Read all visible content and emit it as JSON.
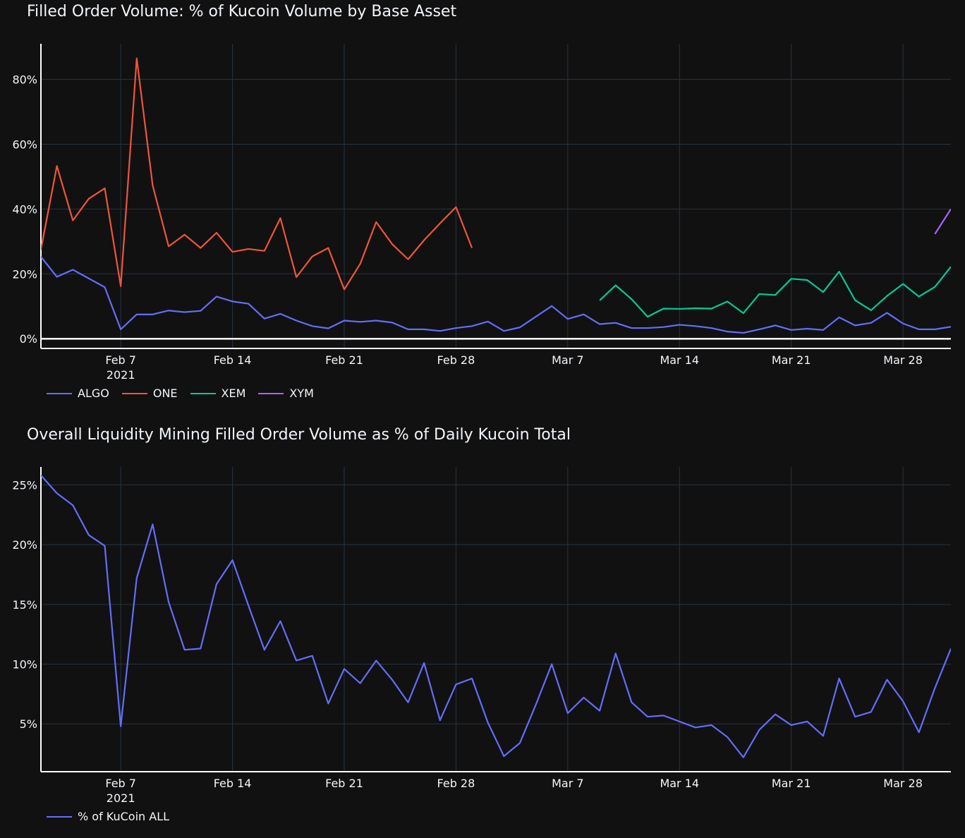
{
  "charts": [
    {
      "title": "Filled Order Volume: % of Kucoin Volume by Base Asset",
      "legend": [
        "ALGO",
        "ONE",
        "XEM",
        "XYM"
      ]
    },
    {
      "title": "Overall Liquidity Mining Filled Order Volume as % of Daily Kucoin Total",
      "legend": [
        "% of KuCoin ALL"
      ]
    }
  ],
  "chart_data": [
    {
      "type": "line",
      "title": "Filled Order Volume: % of Kucoin Volume by Base Asset",
      "x_ticks": [
        {
          "date": "2021-02-07",
          "label": "Feb 7",
          "sublabel": "2021"
        },
        {
          "date": "2021-02-14",
          "label": "Feb 14"
        },
        {
          "date": "2021-02-21",
          "label": "Feb 21"
        },
        {
          "date": "2021-02-28",
          "label": "Feb 28"
        },
        {
          "date": "2021-03-07",
          "label": "Mar 7"
        },
        {
          "date": "2021-03-14",
          "label": "Mar 14"
        },
        {
          "date": "2021-03-21",
          "label": "Mar 21"
        },
        {
          "date": "2021-03-28",
          "label": "Mar 28"
        }
      ],
      "xlim": [
        "2021-02-02",
        "2021-03-31"
      ],
      "ylim": [
        -3,
        91
      ],
      "y_ticks": [
        0,
        20,
        40,
        60,
        80
      ],
      "y_tick_labels": [
        "0%",
        "20%",
        "40%",
        "60%",
        "80%"
      ],
      "grid": true,
      "legend_position": "bottom-left",
      "series": [
        {
          "name": "ALGO",
          "color": "#636efa",
          "start": "2021-02-02",
          "values": [
            25.3,
            19.1,
            21.3,
            18.6,
            15.9,
            2.9,
            7.5,
            7.5,
            8.7,
            8.2,
            8.6,
            13.0,
            11.5,
            10.8,
            6.2,
            7.7,
            5.6,
            3.9,
            3.2,
            5.6,
            5.2,
            5.6,
            5.0,
            2.9,
            2.9,
            2.4,
            3.3,
            3.9,
            5.3,
            2.4,
            3.5,
            6.8,
            10.1,
            6.1,
            7.5,
            4.5,
            4.9,
            3.3,
            3.3,
            3.6,
            4.3,
            3.9,
            3.3,
            2.2,
            1.8,
            2.9,
            4.1,
            2.7,
            3.1,
            2.7,
            6.6,
            4.1,
            4.9,
            8.0,
            4.7,
            2.9,
            2.9,
            3.7
          ]
        },
        {
          "name": "ONE",
          "color": "#ef553b",
          "start": "2021-02-02",
          "values": [
            27.5,
            53.3,
            36.5,
            43.2,
            46.4,
            16.2,
            86.5,
            47.3,
            28.5,
            32.1,
            28.0,
            32.7,
            26.8,
            27.7,
            27.1,
            37.2,
            19.0,
            25.4,
            28.0,
            15.2,
            23.1,
            36.0,
            29.2,
            24.5,
            30.4,
            35.6,
            40.6,
            28.0
          ]
        },
        {
          "name": "XEM",
          "color": "#00cc96",
          "start": "2021-03-09",
          "values": [
            11.8,
            16.5,
            12.2,
            6.8,
            9.3,
            9.2,
            9.4,
            9.3,
            11.5,
            7.9,
            13.8,
            13.5,
            18.5,
            18.1,
            14.4,
            20.7,
            11.9,
            8.8,
            13.2,
            16.9,
            13.0,
            16.0,
            22.2
          ]
        },
        {
          "name": "XYM",
          "color": "#ab63fa",
          "start": "2021-03-30",
          "values": [
            32.3,
            40.0
          ]
        }
      ]
    },
    {
      "type": "line",
      "title": "Overall Liquidity Mining Filled Order Volume as % of Daily Kucoin Total",
      "x_ticks": [
        {
          "date": "2021-02-07",
          "label": "Feb 7",
          "sublabel": "2021"
        },
        {
          "date": "2021-02-14",
          "label": "Feb 14"
        },
        {
          "date": "2021-02-21",
          "label": "Feb 21"
        },
        {
          "date": "2021-02-28",
          "label": "Feb 28"
        },
        {
          "date": "2021-03-07",
          "label": "Mar 7"
        },
        {
          "date": "2021-03-14",
          "label": "Mar 14"
        },
        {
          "date": "2021-03-21",
          "label": "Mar 21"
        },
        {
          "date": "2021-03-28",
          "label": "Mar 28"
        }
      ],
      "xlim": [
        "2021-02-02",
        "2021-03-31"
      ],
      "ylim": [
        1.0,
        26.5
      ],
      "y_ticks": [
        5,
        10,
        15,
        20,
        25
      ],
      "y_tick_labels": [
        "5%",
        "10%",
        "15%",
        "20%",
        "25%"
      ],
      "grid": true,
      "legend_position": "bottom-left",
      "series": [
        {
          "name": "% of KuCoin ALL",
          "color": "#636efa",
          "start": "2021-02-02",
          "values": [
            25.8,
            24.3,
            23.3,
            20.8,
            19.9,
            4.8,
            17.2,
            21.7,
            15.2,
            11.2,
            11.3,
            16.7,
            18.7,
            14.9,
            11.2,
            13.6,
            10.3,
            10.7,
            6.7,
            9.6,
            8.4,
            10.3,
            8.7,
            6.8,
            10.1,
            5.3,
            8.3,
            8.8,
            5.1,
            2.3,
            3.4,
            6.6,
            10.0,
            5.9,
            7.2,
            6.1,
            10.9,
            6.8,
            5.6,
            5.7,
            5.2,
            4.7,
            4.9,
            3.9,
            2.2,
            4.5,
            5.8,
            4.9,
            5.2,
            4.0,
            8.8,
            5.6,
            6.0,
            8.7,
            6.9,
            4.3,
            8.0,
            11.3
          ]
        }
      ]
    }
  ]
}
